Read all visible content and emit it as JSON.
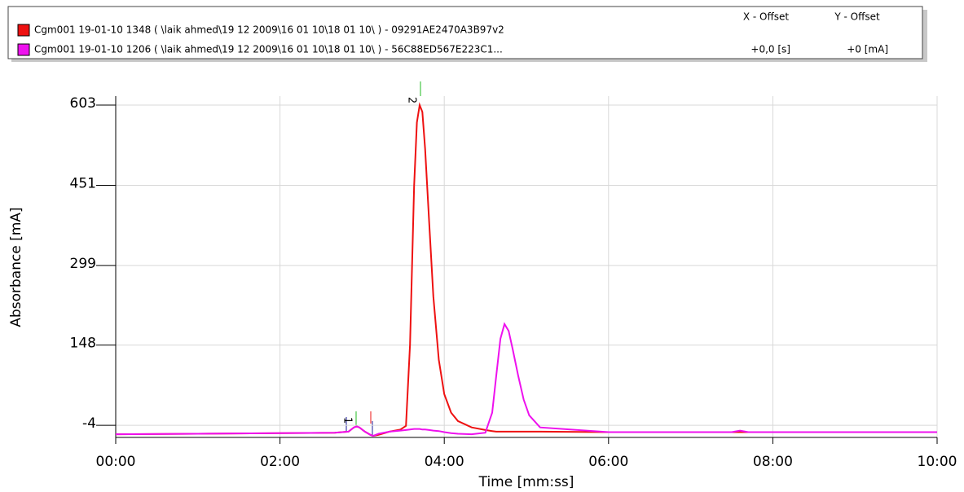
{
  "chart_data": {
    "type": "line",
    "legend": {
      "x_offset_header": "X - Offset",
      "y_offset_header": "Y - Offset"
    },
    "x_label": "Time [mm:ss]",
    "y_label": "Absorbance [mA]",
    "x": [
      0,
      60,
      120,
      160,
      170,
      174,
      176,
      178,
      182,
      186,
      188,
      192,
      200,
      208,
      212,
      215,
      218,
      220,
      222,
      224,
      226,
      229,
      232,
      236,
      240,
      245,
      250,
      260,
      270,
      275,
      278,
      281,
      284,
      287,
      290,
      294,
      298,
      302,
      310,
      360,
      450,
      456,
      462,
      480,
      600
    ],
    "series": [
      {
        "name": "Cgm001 19-01-10 1348  ( \\laik ahmed\\19 12 2009\\16 01 10\\18 01 10\\ ) - 09291AE2470A3B97v2",
        "color": "#ee1111",
        "values": [
          -21,
          -20,
          -19,
          -18,
          -16,
          -8,
          -6,
          -8,
          -16,
          -22,
          -24,
          -22,
          -16,
          -12,
          -5,
          150,
          450,
          570,
          603,
          590,
          520,
          380,
          240,
          120,
          55,
          20,
          4,
          -8,
          -13,
          -15,
          -16,
          -16,
          -16,
          -16,
          -16,
          -16,
          -16,
          -16,
          -16,
          -17,
          -17,
          -17,
          -17,
          -17,
          -17
        ]
      },
      {
        "name": "Cgm001 19-01-10 1206  ( \\laik ahmed\\19 12 2009\\16 01 10\\18 01 10\\ ) - 56C88ED567E223C1...",
        "color": "#ee11ee",
        "x_offset": "+0,0 [s]",
        "y_offset": "+0 [mA]",
        "values": [
          -21,
          -20,
          -19,
          -18,
          -16,
          -8,
          -6,
          -8,
          -16,
          -22,
          -24,
          -20,
          -16,
          -14,
          -13,
          -12,
          -11,
          -11,
          -11,
          -12,
          -12,
          -13,
          -14,
          -15,
          -17,
          -19,
          -20,
          -21,
          -18,
          20,
          90,
          160,
          188,
          175,
          140,
          90,
          45,
          15,
          -8,
          -17,
          -17,
          -14,
          -17,
          -17,
          -17
        ]
      }
    ],
    "annotations": [
      {
        "text": "1",
        "x": 175,
        "y": -4
      },
      {
        "text": "2",
        "x": 222,
        "y": 603
      }
    ],
    "xlim": [
      0,
      600
    ],
    "xticks": [
      {
        "value": 0,
        "label": "00:00"
      },
      {
        "value": 120,
        "label": "02:00"
      },
      {
        "value": 240,
        "label": "04:00"
      },
      {
        "value": 360,
        "label": "06:00"
      },
      {
        "value": 480,
        "label": "08:00"
      },
      {
        "value": 600,
        "label": "10:00"
      }
    ],
    "ylim": [
      -27,
      620
    ],
    "yticks": [
      -4,
      148,
      299,
      451,
      603
    ],
    "grid": true
  }
}
